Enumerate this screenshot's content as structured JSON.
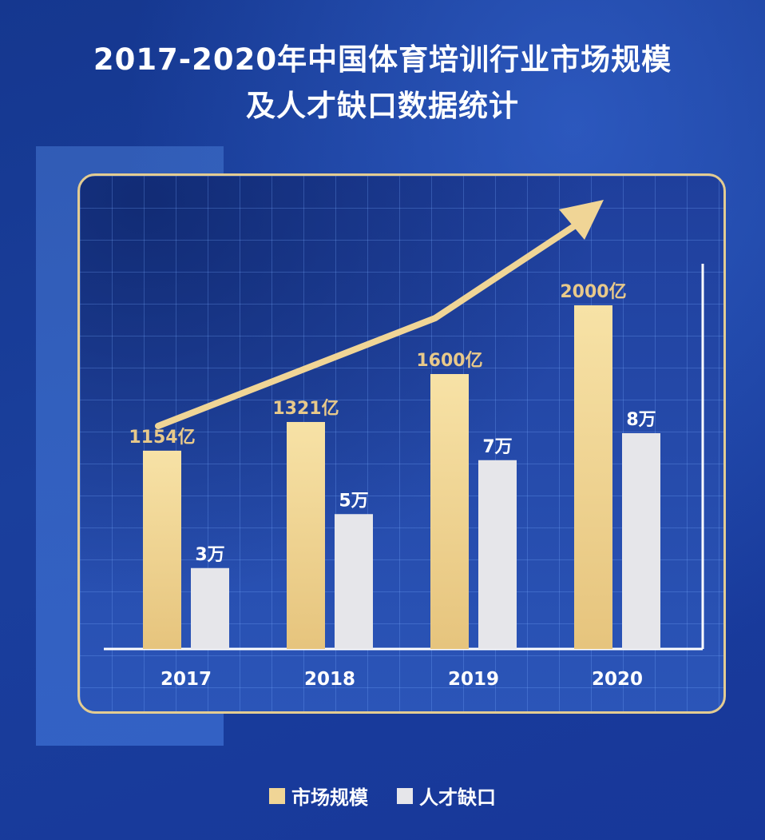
{
  "title_line1": "2017-2020年中国体育培训行业市场规模",
  "title_line2": "及人才缺口数据统计",
  "chart_data": {
    "type": "bar",
    "categories": [
      "2017",
      "2018",
      "2019",
      "2020"
    ],
    "series": [
      {
        "name": "市场规模",
        "values": [
          1154,
          1321,
          1600,
          2000
        ],
        "labels": [
          "1154亿",
          "1321亿",
          "1600亿",
          "2000亿"
        ],
        "color": "#f0d596"
      },
      {
        "name": "人才缺口",
        "values": [
          3,
          5,
          7,
          8
        ],
        "labels": [
          "3万",
          "5万",
          "7万",
          "8万"
        ],
        "color": "#e6e6ea"
      }
    ],
    "value_label_colors": {
      "market": "#e8c98a",
      "talent": "#ffffff"
    },
    "trend_arrow": true,
    "grid": true,
    "legend_position": "bottom"
  },
  "colors": {
    "background": "#1a3f9c",
    "panel_border": "#e3cc92",
    "axis": "#ffffff",
    "arrow": "#f0d596"
  }
}
